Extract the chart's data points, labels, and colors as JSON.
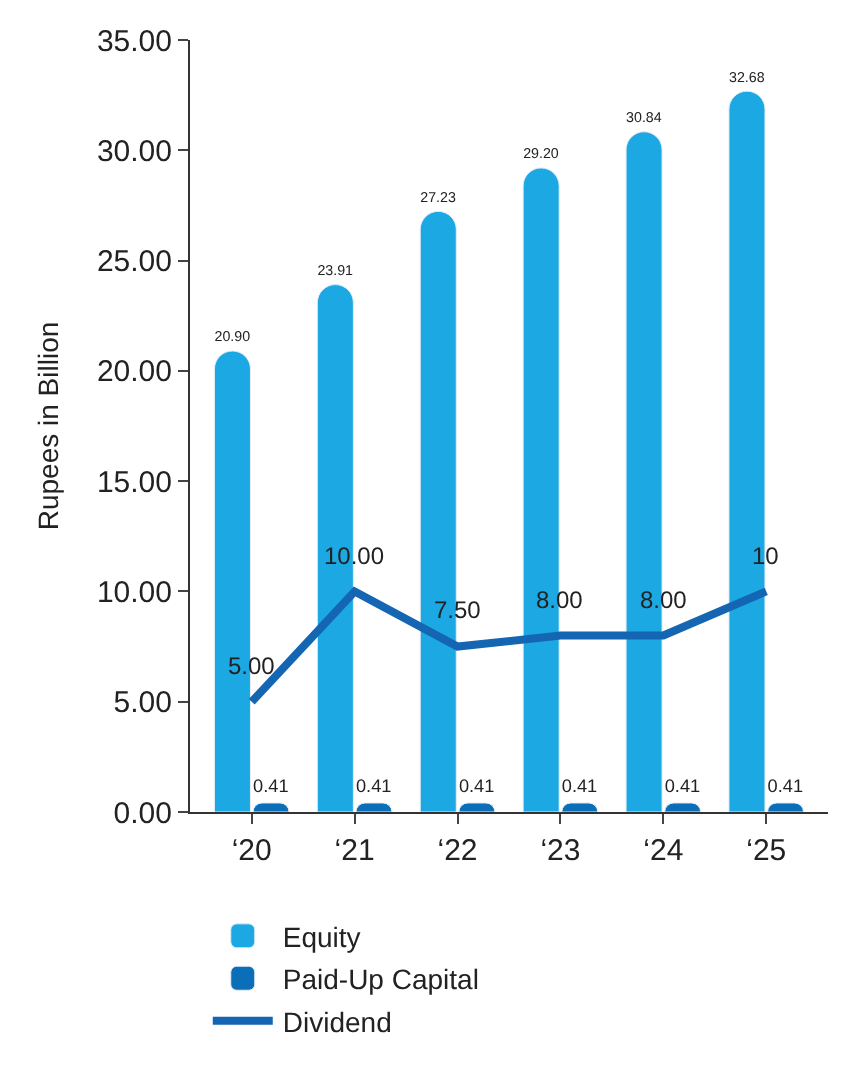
{
  "chart_data": {
    "type": "bar",
    "ylabel": "Rupees in Billion",
    "categories": [
      "‘20",
      "‘21",
      "‘22",
      "‘23",
      "‘24",
      "‘25"
    ],
    "ylim": [
      0,
      35
    ],
    "yticks": [
      {
        "value": 0,
        "label": "0.00"
      },
      {
        "value": 5,
        "label": "5.00"
      },
      {
        "value": 10,
        "label": "10.00"
      },
      {
        "value": 15,
        "label": "15.00"
      },
      {
        "value": 20,
        "label": "20.00"
      },
      {
        "value": 25,
        "label": "25.00"
      },
      {
        "value": 30,
        "label": "30.00"
      },
      {
        "value": 35,
        "label": "35.00"
      }
    ],
    "legend": "bottom",
    "series": [
      {
        "name": "Equity",
        "color": "#1ba8e3",
        "values": [
          20.9,
          23.91,
          27.23,
          29.2,
          30.84,
          32.68
        ],
        "value_labels": [
          "20.90",
          "23.91",
          "27.23",
          "29.20",
          "30.84",
          "32.68"
        ]
      },
      {
        "name": "Paid-Up Capital",
        "color": "#0a6fb8",
        "values": [
          0.41,
          0.41,
          0.41,
          0.41,
          0.41,
          0.41
        ],
        "value_labels": [
          "0.41",
          "0.41",
          "0.41",
          "0.41",
          "0.41",
          "0.41"
        ]
      },
      {
        "name": "Dividend",
        "type": "line",
        "color": "#1466b3",
        "values": [
          5.0,
          10.0,
          7.5,
          8.0,
          8.0,
          10
        ],
        "value_labels": [
          "5.00",
          "10.00",
          "7.50",
          "8.00",
          "8.00",
          "10"
        ],
        "marker": "none",
        "line_style": "solid"
      }
    ]
  }
}
